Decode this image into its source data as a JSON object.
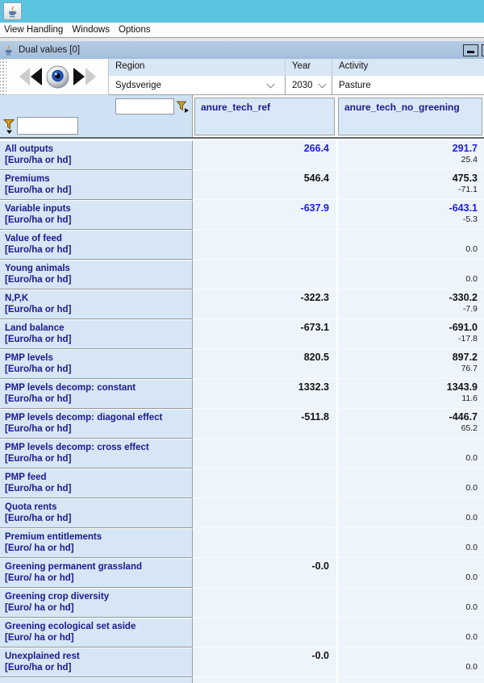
{
  "window": {
    "titlebar_icon": "java-cup-icon",
    "menus": [
      {
        "label": "View Handling"
      },
      {
        "label": "Windows"
      },
      {
        "label": "Options"
      }
    ]
  },
  "frame": {
    "title": "Dual values [0]",
    "minimize_icon": "minimize-icon"
  },
  "toolbar": {
    "nav_icons": [
      "step-back-disabled",
      "step-back",
      "eye-view",
      "step-forward",
      "step-forward-disabled"
    ]
  },
  "selectors": {
    "region": {
      "label": "Region",
      "value": "Sydsverige"
    },
    "year": {
      "label": "Year",
      "value": "2030"
    },
    "activity": {
      "label": "Activity",
      "value": "Pasture"
    }
  },
  "filters": {
    "column_filter_value": "",
    "row_filter_value": ""
  },
  "table": {
    "columns": [
      "anure_tech_ref",
      "anure_tech_no_greening"
    ],
    "rows": [
      {
        "label": "All outputs",
        "unit": "[Euro/ha or hd]",
        "ref": "266.4",
        "cmp": "291.7",
        "diff": "25.4",
        "blue": true
      },
      {
        "label": "Premiums",
        "unit": "[Euro/ha or hd]",
        "ref": "546.4",
        "cmp": "475.3",
        "diff": "-71.1",
        "blue": false
      },
      {
        "label": "Variable inputs",
        "unit": "[Euro/ha or hd]",
        "ref": "-637.9",
        "cmp": "-643.1",
        "diff": "-5.3",
        "blue": true
      },
      {
        "label": "Value of feed",
        "unit": "[Euro/ha or hd]",
        "ref": "",
        "cmp": "",
        "diff": "0.0",
        "blue": false
      },
      {
        "label": "Young animals",
        "unit": "[Euro/ha or hd]",
        "ref": "",
        "cmp": "",
        "diff": "0.0",
        "blue": false
      },
      {
        "label": "N,P,K",
        "unit": "[Euro/ha or hd]",
        "ref": "-322.3",
        "cmp": "-330.2",
        "diff": "-7.9",
        "blue": false
      },
      {
        "label": "Land balance",
        "unit": "[Euro/ha or hd]",
        "ref": "-673.1",
        "cmp": "-691.0",
        "diff": "-17.8",
        "blue": false
      },
      {
        "label": "PMP levels",
        "unit": "[Euro/ha or hd]",
        "ref": "820.5",
        "cmp": "897.2",
        "diff": "76.7",
        "blue": false
      },
      {
        "label": "PMP levels decomp: constant",
        "unit": "[Euro/ha or hd]",
        "ref": "1332.3",
        "cmp": "1343.9",
        "diff": "11.6",
        "blue": false
      },
      {
        "label": "PMP levels decomp: diagonal effect",
        "unit": "[Euro/ha or hd]",
        "ref": "-511.8",
        "cmp": "-446.7",
        "diff": "65.2",
        "blue": false
      },
      {
        "label": "PMP levels decomp: cross effect",
        "unit": "[Euro/ha or hd]",
        "ref": "",
        "cmp": "",
        "diff": "0.0",
        "blue": false
      },
      {
        "label": "PMP feed",
        "unit": "[Euro/ha or hd]",
        "ref": "",
        "cmp": "",
        "diff": "0.0",
        "blue": false
      },
      {
        "label": "Quota rents",
        "unit": "[Euro/ha or hd]",
        "ref": "",
        "cmp": "",
        "diff": "0.0",
        "blue": false
      },
      {
        "label": "Premium entitlements",
        "unit": "[Euro/ ha or hd]",
        "ref": "",
        "cmp": "",
        "diff": "0.0",
        "blue": false
      },
      {
        "label": "Greening permanent grassland",
        "unit": "[Euro/ ha or hd]",
        "ref": "-0.0",
        "cmp": "",
        "diff": "0.0",
        "blue": false
      },
      {
        "label": "Greening crop diversity",
        "unit": "[Euro/ ha or hd]",
        "ref": "",
        "cmp": "",
        "diff": "0.0",
        "blue": false
      },
      {
        "label": "Greening ecological set aside",
        "unit": "[Euro/ ha or hd]",
        "ref": "",
        "cmp": "",
        "diff": "0.0",
        "blue": false
      },
      {
        "label": "Unexplained rest",
        "unit": "[Euro/ha or hd]",
        "ref": "-0.0",
        "cmp": "",
        "diff": "0.0",
        "blue": false
      }
    ]
  },
  "colors": {
    "os_titlebar": "#5ac4e1",
    "frame_titlebar": "#a8c1dc",
    "header_cell_bg": "#d9e8f6",
    "row_header_bg": "#d7e6f5",
    "value_cell_bg": "#eef4fb",
    "label_navy": "#1a1a8c",
    "value_blue": "#1c1cee",
    "value_black": "#141414"
  }
}
